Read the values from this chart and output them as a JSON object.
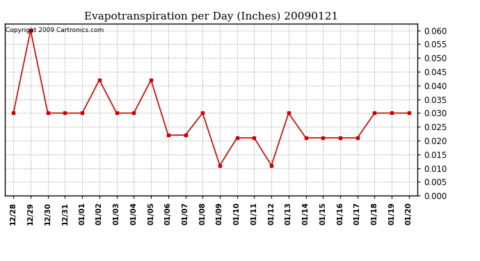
{
  "title": "Evapotranspiration per Day (Inches) 20090121",
  "copyright_text": "Copyright 2009 Cartronics.com",
  "x_labels": [
    "12/28",
    "12/29",
    "12/30",
    "12/31",
    "01/01",
    "01/02",
    "01/03",
    "01/04",
    "01/05",
    "01/06",
    "01/07",
    "01/08",
    "01/09",
    "01/10",
    "01/11",
    "01/12",
    "01/13",
    "01/14",
    "01/15",
    "01/16",
    "01/17",
    "01/18",
    "01/19",
    "01/20"
  ],
  "y_values": [
    0.03,
    0.06,
    0.03,
    0.03,
    0.03,
    0.042,
    0.03,
    0.03,
    0.042,
    0.022,
    0.022,
    0.03,
    0.011,
    0.021,
    0.021,
    0.011,
    0.03,
    0.021,
    0.021,
    0.021,
    0.021,
    0.03,
    0.03,
    0.03
  ],
  "line_color": "#cc0000",
  "marker": "s",
  "marker_size": 3,
  "background_color": "#ffffff",
  "grid_color": "#bbbbbb",
  "ylim": [
    0.0,
    0.0625
  ],
  "yticks": [
    0.0,
    0.005,
    0.01,
    0.015,
    0.02,
    0.025,
    0.03,
    0.035,
    0.04,
    0.045,
    0.05,
    0.055,
    0.06
  ],
  "title_fontsize": 11,
  "copyright_fontsize": 6.5,
  "tick_fontsize": 7.5,
  "ytick_fontsize": 8.5
}
